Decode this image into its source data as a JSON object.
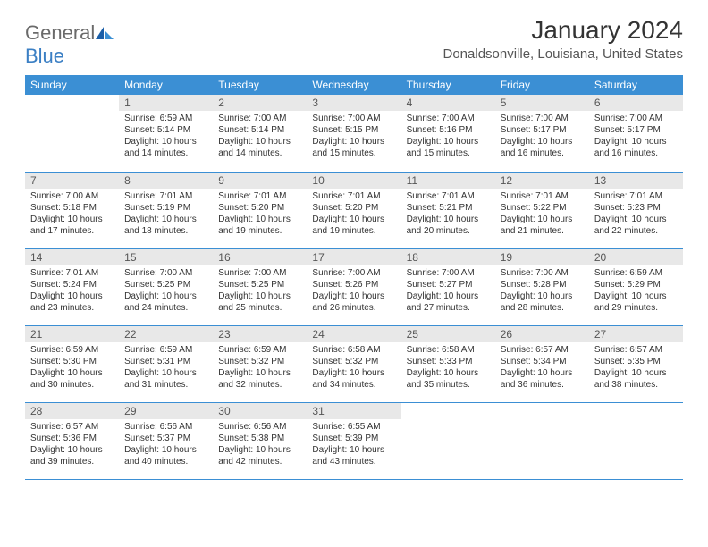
{
  "logo": {
    "word1": "General",
    "word2": "Blue"
  },
  "title": "January 2024",
  "location": "Donaldsonville, Louisiana, United States",
  "colors": {
    "header_bg": "#3b8fd4",
    "header_fg": "#ffffff",
    "daynum_bg": "#e8e8e8",
    "border": "#3b8fd4",
    "logo_gray": "#6a6a6a",
    "logo_blue": "#3b7fc4"
  },
  "weekdays": [
    "Sunday",
    "Monday",
    "Tuesday",
    "Wednesday",
    "Thursday",
    "Friday",
    "Saturday"
  ],
  "weeks": [
    [
      null,
      {
        "n": "1",
        "sr": "Sunrise: 6:59 AM",
        "ss": "Sunset: 5:14 PM",
        "d1": "Daylight: 10 hours",
        "d2": "and 14 minutes."
      },
      {
        "n": "2",
        "sr": "Sunrise: 7:00 AM",
        "ss": "Sunset: 5:14 PM",
        "d1": "Daylight: 10 hours",
        "d2": "and 14 minutes."
      },
      {
        "n": "3",
        "sr": "Sunrise: 7:00 AM",
        "ss": "Sunset: 5:15 PM",
        "d1": "Daylight: 10 hours",
        "d2": "and 15 minutes."
      },
      {
        "n": "4",
        "sr": "Sunrise: 7:00 AM",
        "ss": "Sunset: 5:16 PM",
        "d1": "Daylight: 10 hours",
        "d2": "and 15 minutes."
      },
      {
        "n": "5",
        "sr": "Sunrise: 7:00 AM",
        "ss": "Sunset: 5:17 PM",
        "d1": "Daylight: 10 hours",
        "d2": "and 16 minutes."
      },
      {
        "n": "6",
        "sr": "Sunrise: 7:00 AM",
        "ss": "Sunset: 5:17 PM",
        "d1": "Daylight: 10 hours",
        "d2": "and 16 minutes."
      }
    ],
    [
      {
        "n": "7",
        "sr": "Sunrise: 7:00 AM",
        "ss": "Sunset: 5:18 PM",
        "d1": "Daylight: 10 hours",
        "d2": "and 17 minutes."
      },
      {
        "n": "8",
        "sr": "Sunrise: 7:01 AM",
        "ss": "Sunset: 5:19 PM",
        "d1": "Daylight: 10 hours",
        "d2": "and 18 minutes."
      },
      {
        "n": "9",
        "sr": "Sunrise: 7:01 AM",
        "ss": "Sunset: 5:20 PM",
        "d1": "Daylight: 10 hours",
        "d2": "and 19 minutes."
      },
      {
        "n": "10",
        "sr": "Sunrise: 7:01 AM",
        "ss": "Sunset: 5:20 PM",
        "d1": "Daylight: 10 hours",
        "d2": "and 19 minutes."
      },
      {
        "n": "11",
        "sr": "Sunrise: 7:01 AM",
        "ss": "Sunset: 5:21 PM",
        "d1": "Daylight: 10 hours",
        "d2": "and 20 minutes."
      },
      {
        "n": "12",
        "sr": "Sunrise: 7:01 AM",
        "ss": "Sunset: 5:22 PM",
        "d1": "Daylight: 10 hours",
        "d2": "and 21 minutes."
      },
      {
        "n": "13",
        "sr": "Sunrise: 7:01 AM",
        "ss": "Sunset: 5:23 PM",
        "d1": "Daylight: 10 hours",
        "d2": "and 22 minutes."
      }
    ],
    [
      {
        "n": "14",
        "sr": "Sunrise: 7:01 AM",
        "ss": "Sunset: 5:24 PM",
        "d1": "Daylight: 10 hours",
        "d2": "and 23 minutes."
      },
      {
        "n": "15",
        "sr": "Sunrise: 7:00 AM",
        "ss": "Sunset: 5:25 PM",
        "d1": "Daylight: 10 hours",
        "d2": "and 24 minutes."
      },
      {
        "n": "16",
        "sr": "Sunrise: 7:00 AM",
        "ss": "Sunset: 5:25 PM",
        "d1": "Daylight: 10 hours",
        "d2": "and 25 minutes."
      },
      {
        "n": "17",
        "sr": "Sunrise: 7:00 AM",
        "ss": "Sunset: 5:26 PM",
        "d1": "Daylight: 10 hours",
        "d2": "and 26 minutes."
      },
      {
        "n": "18",
        "sr": "Sunrise: 7:00 AM",
        "ss": "Sunset: 5:27 PM",
        "d1": "Daylight: 10 hours",
        "d2": "and 27 minutes."
      },
      {
        "n": "19",
        "sr": "Sunrise: 7:00 AM",
        "ss": "Sunset: 5:28 PM",
        "d1": "Daylight: 10 hours",
        "d2": "and 28 minutes."
      },
      {
        "n": "20",
        "sr": "Sunrise: 6:59 AM",
        "ss": "Sunset: 5:29 PM",
        "d1": "Daylight: 10 hours",
        "d2": "and 29 minutes."
      }
    ],
    [
      {
        "n": "21",
        "sr": "Sunrise: 6:59 AM",
        "ss": "Sunset: 5:30 PM",
        "d1": "Daylight: 10 hours",
        "d2": "and 30 minutes."
      },
      {
        "n": "22",
        "sr": "Sunrise: 6:59 AM",
        "ss": "Sunset: 5:31 PM",
        "d1": "Daylight: 10 hours",
        "d2": "and 31 minutes."
      },
      {
        "n": "23",
        "sr": "Sunrise: 6:59 AM",
        "ss": "Sunset: 5:32 PM",
        "d1": "Daylight: 10 hours",
        "d2": "and 32 minutes."
      },
      {
        "n": "24",
        "sr": "Sunrise: 6:58 AM",
        "ss": "Sunset: 5:32 PM",
        "d1": "Daylight: 10 hours",
        "d2": "and 34 minutes."
      },
      {
        "n": "25",
        "sr": "Sunrise: 6:58 AM",
        "ss": "Sunset: 5:33 PM",
        "d1": "Daylight: 10 hours",
        "d2": "and 35 minutes."
      },
      {
        "n": "26",
        "sr": "Sunrise: 6:57 AM",
        "ss": "Sunset: 5:34 PM",
        "d1": "Daylight: 10 hours",
        "d2": "and 36 minutes."
      },
      {
        "n": "27",
        "sr": "Sunrise: 6:57 AM",
        "ss": "Sunset: 5:35 PM",
        "d1": "Daylight: 10 hours",
        "d2": "and 38 minutes."
      }
    ],
    [
      {
        "n": "28",
        "sr": "Sunrise: 6:57 AM",
        "ss": "Sunset: 5:36 PM",
        "d1": "Daylight: 10 hours",
        "d2": "and 39 minutes."
      },
      {
        "n": "29",
        "sr": "Sunrise: 6:56 AM",
        "ss": "Sunset: 5:37 PM",
        "d1": "Daylight: 10 hours",
        "d2": "and 40 minutes."
      },
      {
        "n": "30",
        "sr": "Sunrise: 6:56 AM",
        "ss": "Sunset: 5:38 PM",
        "d1": "Daylight: 10 hours",
        "d2": "and 42 minutes."
      },
      {
        "n": "31",
        "sr": "Sunrise: 6:55 AM",
        "ss": "Sunset: 5:39 PM",
        "d1": "Daylight: 10 hours",
        "d2": "and 43 minutes."
      },
      null,
      null,
      null
    ]
  ]
}
